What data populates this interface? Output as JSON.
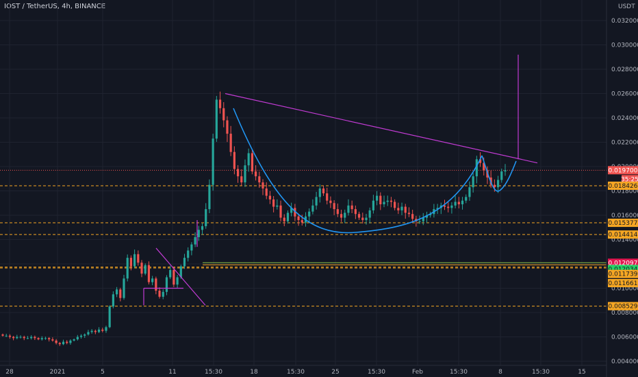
{
  "header": {
    "title": "IOST / TetherUS, 4h, BINANCE"
  },
  "colors": {
    "background": "#131722",
    "grid": "#1f2330",
    "up": "#26a69a",
    "down": "#ef5350",
    "trendline": "#c23bd4",
    "curve": "#2196f3",
    "level": "#f5a623",
    "green_level": "#8bc34a",
    "current_price_line": "#ef5350"
  },
  "chart_data": {
    "type": "candlestick",
    "title": "IOST / TetherUS, 4h, BINANCE",
    "currency_label": "USDT",
    "ylim": [
      0.004,
      0.0325
    ],
    "y_ticks": [
      "0.004000",
      "0.006000",
      "0.008000",
      "0.010000",
      "0.012000",
      "0.014000",
      "0.016000",
      "0.018000",
      "0.020000",
      "0.022000",
      "0.024000",
      "0.026000",
      "0.028000",
      "0.030000",
      "0.032000"
    ],
    "x_labels": [
      "28",
      "2021",
      "5",
      "11",
      "15:30",
      "18",
      "15:30",
      "25",
      "15:30",
      "Feb",
      "15:30",
      "8",
      "15:30",
      "15"
    ],
    "price_labels": [
      {
        "text": "0.019700",
        "value": 0.0197,
        "kind": "current"
      },
      {
        "text": "35:25",
        "value": 0.0192,
        "kind": "timer"
      },
      {
        "text": "0.018426",
        "value": 0.018426,
        "kind": "level"
      },
      {
        "text": "0.015377",
        "value": 0.015377,
        "kind": "level"
      },
      {
        "text": "0.014414",
        "value": 0.014414,
        "kind": "level"
      },
      {
        "text": "0.012097",
        "value": 0.012097,
        "kind": "red"
      },
      {
        "text": "0.012034",
        "value": 0.012034,
        "kind": "green"
      },
      {
        "text": "0.011739",
        "value": 0.011739,
        "kind": "level"
      },
      {
        "text": "0.011661",
        "value": 0.011661,
        "kind": "level"
      },
      {
        "text": "0.008529",
        "value": 0.008529,
        "kind": "level"
      }
    ],
    "close_series": [
      0.0061,
      0.0061,
      0.006,
      0.0059,
      0.006,
      0.006,
      0.0059,
      0.0059,
      0.006,
      0.0059,
      0.0058,
      0.0059,
      0.0059,
      0.0058,
      0.0057,
      0.0055,
      0.0054,
      0.0056,
      0.0055,
      0.0057,
      0.0058,
      0.006,
      0.0061,
      0.0062,
      0.0064,
      0.0065,
      0.0064,
      0.0066,
      0.0065,
      0.0068,
      0.0085,
      0.0095,
      0.0099,
      0.0092,
      0.0108,
      0.0125,
      0.0118,
      0.0128,
      0.0121,
      0.0112,
      0.0119,
      0.0105,
      0.0108,
      0.0098,
      0.0093,
      0.0097,
      0.0109,
      0.0115,
      0.0103,
      0.0109,
      0.0118,
      0.0125,
      0.0131,
      0.0136,
      0.0142,
      0.0148,
      0.0151,
      0.0165,
      0.0185,
      0.0223,
      0.0255,
      0.0248,
      0.0238,
      0.0227,
      0.0212,
      0.0198,
      0.0192,
      0.0187,
      0.0201,
      0.0211,
      0.0196,
      0.0192,
      0.0187,
      0.0182,
      0.0176,
      0.0173,
      0.0167,
      0.0168,
      0.0158,
      0.0155,
      0.0162,
      0.0166,
      0.0159,
      0.0156,
      0.0154,
      0.0159,
      0.0163,
      0.0168,
      0.0175,
      0.0182,
      0.0178,
      0.0172,
      0.017,
      0.0165,
      0.0161,
      0.0158,
      0.0162,
      0.0168,
      0.0165,
      0.0161,
      0.0158,
      0.0156,
      0.0158,
      0.0164,
      0.0172,
      0.0176,
      0.0169,
      0.0171,
      0.0172,
      0.0171,
      0.0166,
      0.0164,
      0.0167,
      0.0162,
      0.0161,
      0.0157,
      0.0155,
      0.0155,
      0.0158,
      0.016,
      0.0161,
      0.0165,
      0.0166,
      0.0168,
      0.0167,
      0.0166,
      0.0168,
      0.0171,
      0.0169,
      0.0172,
      0.0175,
      0.0183,
      0.0192,
      0.0206,
      0.0203,
      0.0197,
      0.0191,
      0.0185,
      0.0183,
      0.0189,
      0.0196,
      0.0197
    ],
    "annotations": {
      "trendline_main": [
        [
          0,
          0.026
        ],
        [
          1,
          0.0203
        ]
      ],
      "trendline_small": [
        [
          0,
          0.0133
        ],
        [
          1,
          0.0086
        ]
      ],
      "vertical_target_1": [
        0.0134,
        0.0156
      ],
      "vertical_target_2": [
        0.0206,
        0.0292
      ],
      "flag_level": 0.01
    }
  }
}
